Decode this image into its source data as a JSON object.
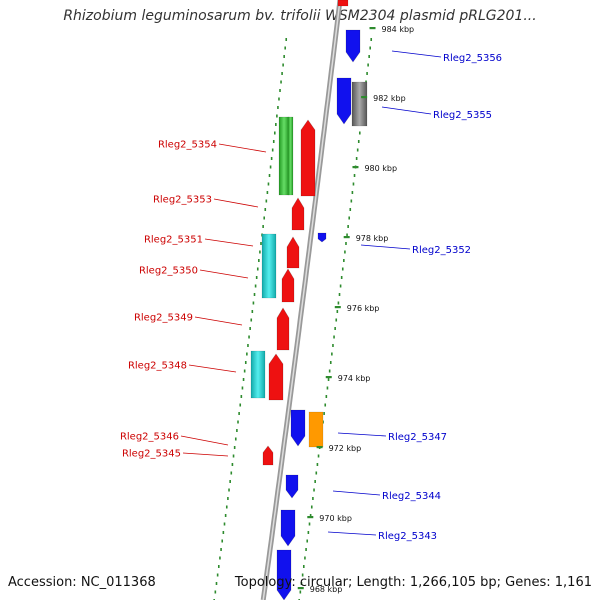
{
  "title": "Rhizobium leguminosarum bv. trifolii WSM2304 plasmid pRLG201...",
  "accession": "Accession: NC_011368",
  "summary": "Topology: circular; Length: 1,266,105 bp; Genes: 1,161",
  "colors": {
    "backbone": "#999999",
    "tick": "#2e8b2e",
    "forward_label": "#cc0000",
    "reverse_label": "#0000cc",
    "red": "#ee1111",
    "blue": "#1111ee",
    "cyan": "#22cccc",
    "green": "#33bb33",
    "orange": "#ff9900",
    "gray": "#777777"
  },
  "scale_labels": [
    "984 kbp",
    "982 kbp",
    "980 kbp",
    "978 kbp",
    "976 kbp",
    "974 kbp",
    "972 kbp",
    "970 kbp",
    "968 kbp"
  ],
  "forward_labels": [
    "Rleg2_5354",
    "Rleg2_5353",
    "Rleg2_5351",
    "Rleg2_5350",
    "Rleg2_5349",
    "Rleg2_5348",
    "Rleg2_5346",
    "Rleg2_5345"
  ],
  "reverse_labels": [
    "Rleg2_5356",
    "Rleg2_5355",
    "Rleg2_5352",
    "Rleg2_5347",
    "Rleg2_5344",
    "Rleg2_5343"
  ]
}
